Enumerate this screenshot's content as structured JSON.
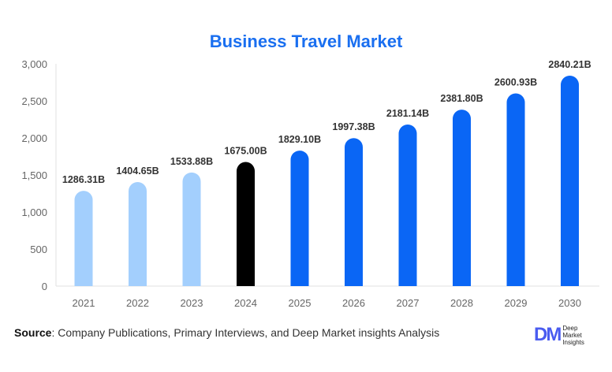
{
  "chart_data": {
    "type": "bar",
    "title": "Business Travel Market",
    "categories": [
      "2021",
      "2022",
      "2023",
      "2024",
      "2025",
      "2026",
      "2027",
      "2028",
      "2029",
      "2030"
    ],
    "values": [
      1286.31,
      1404.65,
      1533.88,
      1675.0,
      1829.1,
      1997.38,
      2181.14,
      2381.8,
      2600.93,
      2840.21
    ],
    "data_labels": [
      "1286.31B",
      "1404.65B",
      "1533.88B",
      "1675.00B",
      "1829.10B",
      "1997.38B",
      "2181.14B",
      "2381.80B",
      "2600.93B",
      "2840.21B"
    ],
    "yticks": [
      "0",
      "500",
      "1,000",
      "1,500",
      "2,000",
      "2,500",
      "3,000"
    ],
    "ylim": [
      0,
      3000
    ],
    "grid": false,
    "colors": {
      "historical": "#a3cffd",
      "base_year": "#000000",
      "forecast": "#0a66f5"
    }
  },
  "source": {
    "label": "Source",
    "text": ": Company Publications, Primary Interviews, and Deep Market insights Analysis"
  },
  "logo": {
    "mark": "DM",
    "text": "Deep Market Insights"
  }
}
